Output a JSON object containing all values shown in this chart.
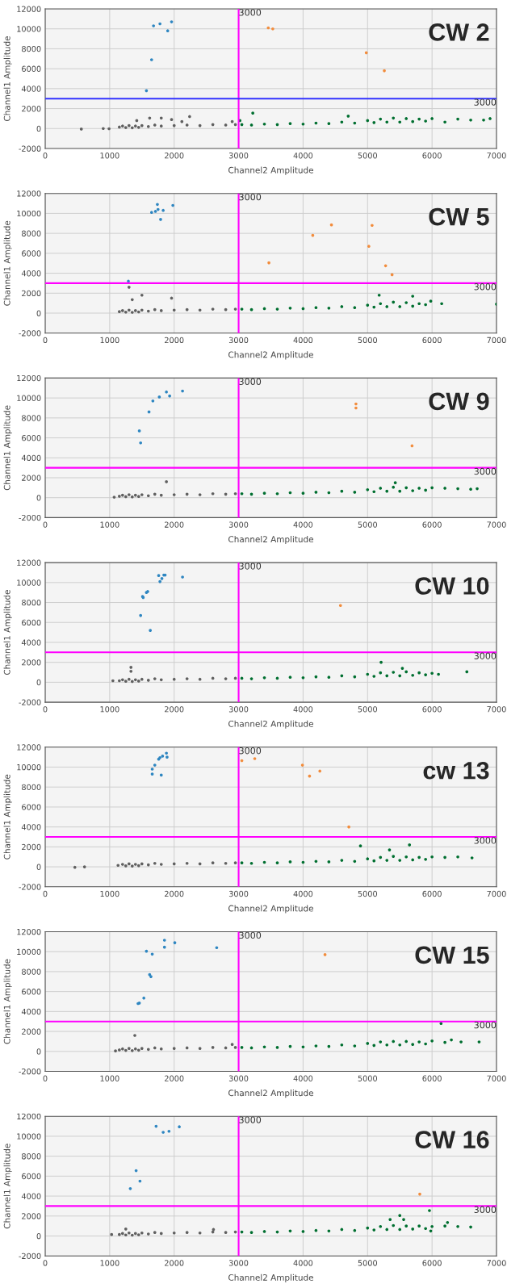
{
  "chart_data": [
    {
      "type": "scatter",
      "title": "CW 2",
      "xlabel": "Channel2 Amplitude",
      "ylabel": "Channel1 Amplitude",
      "xlim": [
        0,
        7000
      ],
      "ylim": [
        -2000,
        12000
      ],
      "xticks": [
        0,
        1000,
        2000,
        3000,
        4000,
        5000,
        6000,
        7000
      ],
      "yticks": [
        -2000,
        0,
        2000,
        4000,
        6000,
        8000,
        10000,
        12000
      ],
      "grid": true,
      "marker": "circle",
      "ref_lines": [
        {
          "axis": "x",
          "value": 3000,
          "label": "3000",
          "color": "#ff00ff"
        },
        {
          "axis": "y",
          "value": 3000,
          "label": "3000",
          "color": "#3333ff"
        }
      ],
      "series": [
        {
          "color": "#606060",
          "x": [
            560,
            900,
            990,
            1420,
            1620,
            1800,
            1960,
            2120,
            2240,
            1150,
            1200,
            1250,
            1300,
            1350,
            1400,
            1450,
            1500,
            1600,
            1700,
            1800,
            2000,
            2200,
            2400,
            2600,
            2800,
            2950,
            2900
          ],
          "values": [
            -50,
            0,
            -20,
            800,
            1050,
            1050,
            900,
            700,
            1200,
            150,
            250,
            100,
            300,
            80,
            250,
            120,
            300,
            200,
            350,
            250,
            300,
            350,
            300,
            400,
            350,
            400,
            700
          ]
        },
        {
          "color": "#006f30",
          "x": [
            3020,
            3220,
            4700,
            3050,
            3200,
            3400,
            3600,
            3800,
            4000,
            4200,
            4400,
            4600,
            4800,
            5000,
            5100,
            5200,
            5300,
            5400,
            5500,
            5600,
            5700,
            5800,
            5900,
            6000,
            6200,
            6400,
            6600,
            6800,
            6900
          ],
          "values": [
            800,
            1550,
            1250,
            400,
            350,
            450,
            400,
            500,
            450,
            550,
            500,
            650,
            550,
            800,
            600,
            950,
            650,
            1050,
            650,
            1000,
            700,
            950,
            750,
            1000,
            650,
            950,
            850,
            850,
            1000
          ]
        },
        {
          "color": "#2e86c1",
          "x": [
            1570,
            1650,
            1680,
            1780,
            1900,
            1960
          ],
          "values": [
            3800,
            6900,
            10300,
            10500,
            9800,
            10700
          ]
        },
        {
          "color": "#f28c3c",
          "x": [
            3460,
            3530,
            4980,
            5260
          ],
          "values": [
            10100,
            10000,
            7600,
            5800
          ]
        }
      ]
    },
    {
      "type": "scatter",
      "title": "CW 5",
      "xlabel": "Channel2 Amplitude",
      "ylabel": "Channel1 Amplitude",
      "xlim": [
        0,
        7000
      ],
      "ylim": [
        -2000,
        12000
      ],
      "xticks": [
        0,
        1000,
        2000,
        3000,
        4000,
        5000,
        6000,
        7000
      ],
      "yticks": [
        -2000,
        0,
        2000,
        4000,
        6000,
        8000,
        10000,
        12000
      ],
      "grid": true,
      "marker": "circle",
      "ref_lines": [
        {
          "axis": "x",
          "value": 3000,
          "label": "3000",
          "color": "#ff00ff"
        },
        {
          "axis": "y",
          "value": 3000,
          "label": "3000",
          "color": "#ff00ff"
        }
      ],
      "series": [
        {
          "color": "#606060",
          "x": [
            1300,
            1350,
            1500,
            1960,
            1150,
            1200,
            1250,
            1300,
            1350,
            1400,
            1450,
            1500,
            1600,
            1700,
            1800,
            2000,
            2200,
            2400,
            2600,
            2800,
            2950
          ],
          "values": [
            2600,
            1350,
            1800,
            1500,
            150,
            250,
            100,
            300,
            80,
            250,
            120,
            300,
            200,
            350,
            250,
            300,
            350,
            300,
            400,
            350,
            400
          ]
        },
        {
          "color": "#006f30",
          "x": [
            5180,
            5700,
            5980,
            6150,
            7000,
            3050,
            3200,
            3400,
            3600,
            3800,
            4000,
            4200,
            4400,
            4600,
            4800,
            5000,
            5100,
            5200,
            5300,
            5400,
            5500,
            5600,
            5700,
            5800,
            5900
          ],
          "values": [
            1800,
            1700,
            1200,
            950,
            900,
            400,
            350,
            450,
            400,
            500,
            450,
            550,
            500,
            650,
            550,
            800,
            600,
            950,
            650,
            1100,
            650,
            1050,
            700,
            950,
            850
          ]
        },
        {
          "color": "#2e86c1",
          "x": [
            1290,
            1650,
            1710,
            1740,
            1750,
            1790,
            1830,
            1980
          ],
          "values": [
            3200,
            10100,
            10200,
            10900,
            10400,
            9400,
            10300,
            10800
          ]
        },
        {
          "color": "#f28c3c",
          "x": [
            3470,
            4150,
            4440,
            5020,
            5070,
            5280,
            5380
          ],
          "values": [
            5050,
            7800,
            8850,
            6700,
            8800,
            4750,
            3850
          ]
        }
      ]
    },
    {
      "type": "scatter",
      "title": "CW 9",
      "xlabel": "Channel2 Amplitude",
      "ylabel": "Channel1 Amplitude",
      "xlim": [
        0,
        7000
      ],
      "ylim": [
        -2000,
        12000
      ],
      "xticks": [
        0,
        1000,
        2000,
        3000,
        4000,
        5000,
        6000,
        7000
      ],
      "yticks": [
        -2000,
        0,
        2000,
        4000,
        6000,
        8000,
        10000,
        12000
      ],
      "grid": true,
      "marker": "circle",
      "ref_lines": [
        {
          "axis": "x",
          "value": 3000,
          "label": "3000",
          "color": "#ff00ff"
        },
        {
          "axis": "y",
          "value": 3000,
          "label": "3000",
          "color": "#ff00ff"
        }
      ],
      "series": [
        {
          "color": "#606060",
          "x": [
            1070,
            1880,
            1150,
            1200,
            1250,
            1300,
            1350,
            1400,
            1450,
            1500,
            1600,
            1700,
            1800,
            2000,
            2200,
            2400,
            2600,
            2800,
            2950
          ],
          "values": [
            50,
            1600,
            150,
            250,
            100,
            300,
            80,
            250,
            120,
            300,
            200,
            350,
            250,
            300,
            350,
            300,
            400,
            350,
            400
          ]
        },
        {
          "color": "#006f30",
          "x": [
            5430,
            6700,
            3050,
            3200,
            3400,
            3600,
            3800,
            4000,
            4200,
            4400,
            4600,
            4800,
            5000,
            5100,
            5200,
            5300,
            5400,
            5500,
            5600,
            5700,
            5800,
            5900,
            6000,
            6200,
            6400,
            6600
          ],
          "values": [
            1500,
            900,
            400,
            350,
            450,
            400,
            500,
            450,
            550,
            500,
            650,
            550,
            800,
            600,
            950,
            650,
            1050,
            650,
            1000,
            700,
            950,
            750,
            1000,
            950,
            900,
            850
          ]
        },
        {
          "color": "#2e86c1",
          "x": [
            1460,
            1480,
            1610,
            1670,
            1770,
            1880,
            1930,
            2130
          ],
          "values": [
            6700,
            5500,
            8600,
            9700,
            10100,
            10600,
            10200,
            10700
          ]
        },
        {
          "color": "#f28c3c",
          "x": [
            4820,
            4820,
            5690
          ],
          "values": [
            9400,
            9000,
            5200
          ]
        }
      ]
    },
    {
      "type": "scatter",
      "title": "CW 10",
      "xlabel": "Channel2 Amplitude",
      "ylabel": "Channel1 Amplitude",
      "xlim": [
        0,
        7000
      ],
      "ylim": [
        -2000,
        12000
      ],
      "xticks": [
        0,
        1000,
        2000,
        3000,
        4000,
        5000,
        6000,
        7000
      ],
      "yticks": [
        -2000,
        0,
        2000,
        4000,
        6000,
        8000,
        10000,
        12000
      ],
      "grid": true,
      "marker": "circle",
      "ref_lines": [
        {
          "axis": "x",
          "value": 3000,
          "label": "3000",
          "color": "#ff00ff"
        },
        {
          "axis": "y",
          "value": 3000,
          "label": "3000",
          "color": "#ff00ff"
        }
      ],
      "series": [
        {
          "color": "#606060",
          "x": [
            1050,
            1330,
            1330,
            1150,
            1200,
            1250,
            1300,
            1350,
            1400,
            1450,
            1500,
            1600,
            1700,
            1800,
            2000,
            2200,
            2400,
            2600,
            2800,
            2950
          ],
          "values": [
            150,
            1500,
            1100,
            150,
            250,
            100,
            300,
            80,
            250,
            120,
            300,
            200,
            350,
            250,
            300,
            350,
            300,
            400,
            350,
            400
          ]
        },
        {
          "color": "#006f30",
          "x": [
            5210,
            5540,
            6540,
            3050,
            3200,
            3400,
            3600,
            3800,
            4000,
            4200,
            4400,
            4600,
            4800,
            5000,
            5100,
            5200,
            5300,
            5400,
            5500,
            5600,
            5700,
            5800,
            5900,
            6000,
            6100
          ],
          "values": [
            2000,
            1400,
            1050,
            400,
            350,
            450,
            400,
            500,
            450,
            550,
            500,
            650,
            550,
            800,
            600,
            950,
            650,
            1000,
            650,
            1050,
            700,
            950,
            750,
            900,
            800
          ]
        },
        {
          "color": "#2e86c1",
          "x": [
            1480,
            1510,
            1520,
            1570,
            1590,
            1630,
            1760,
            1780,
            1810,
            1840,
            1860,
            2130
          ],
          "values": [
            6700,
            8600,
            8500,
            9000,
            9100,
            5200,
            10700,
            10100,
            10400,
            10750,
            10750,
            10550
          ]
        },
        {
          "color": "#f28c3c",
          "x": [
            4580
          ],
          "values": [
            7700
          ]
        }
      ]
    },
    {
      "type": "scatter",
      "title": "cw 13",
      "xlabel": "Channel2 Amplitude",
      "ylabel": "Channel1 Amplitude",
      "xlim": [
        0,
        7000
      ],
      "ylim": [
        -2000,
        12000
      ],
      "xticks": [
        0,
        1000,
        2000,
        3000,
        4000,
        5000,
        6000,
        7000
      ],
      "yticks": [
        -2000,
        0,
        2000,
        4000,
        6000,
        8000,
        10000,
        12000
      ],
      "grid": true,
      "marker": "circle",
      "ref_lines": [
        {
          "axis": "x",
          "value": 3000,
          "label": "3000",
          "color": "#ff00ff"
        },
        {
          "axis": "y",
          "value": 3000,
          "label": "3000",
          "color": "#ff00ff"
        }
      ],
      "series": [
        {
          "color": "#606060",
          "x": [
            460,
            610,
            1130,
            1200,
            1250,
            1300,
            1350,
            1400,
            1450,
            1500,
            1600,
            1700,
            1800,
            2000,
            2200,
            2400,
            2600,
            2800,
            2950
          ],
          "values": [
            -50,
            0,
            150,
            250,
            100,
            300,
            80,
            250,
            120,
            300,
            200,
            350,
            250,
            300,
            350,
            300,
            400,
            350,
            400
          ]
        },
        {
          "color": "#006f30",
          "x": [
            4890,
            5340,
            5650,
            6620,
            3050,
            3200,
            3400,
            3600,
            3800,
            4000,
            4200,
            4400,
            4600,
            4800,
            5000,
            5100,
            5200,
            5300,
            5400,
            5500,
            5600,
            5700,
            5800,
            5900,
            6000,
            6200,
            6400
          ],
          "values": [
            2100,
            1700,
            2200,
            900,
            400,
            350,
            450,
            400,
            500,
            450,
            550,
            500,
            650,
            550,
            800,
            600,
            950,
            650,
            1050,
            650,
            1000,
            700,
            950,
            750,
            1000,
            950,
            1000
          ]
        },
        {
          "color": "#2e86c1",
          "x": [
            1660,
            1660,
            1700,
            1760,
            1780,
            1800,
            1820,
            1880,
            1890
          ],
          "values": [
            9800,
            9300,
            10200,
            10800,
            10950,
            9200,
            11100,
            11400,
            11000
          ]
        },
        {
          "color": "#f28c3c",
          "x": [
            3050,
            3250,
            3990,
            4100,
            4260,
            4710
          ],
          "values": [
            10650,
            10850,
            10200,
            9100,
            9600,
            4000
          ]
        }
      ]
    },
    {
      "type": "scatter",
      "title": "CW 15",
      "xlabel": "Channel2 Amplitude",
      "ylabel": "Channel1 Amplitude",
      "xlim": [
        0,
        7000
      ],
      "ylim": [
        -2000,
        12000
      ],
      "xticks": [
        0,
        1000,
        2000,
        3000,
        4000,
        5000,
        6000,
        7000
      ],
      "yticks": [
        -2000,
        0,
        2000,
        4000,
        6000,
        8000,
        10000,
        12000
      ],
      "grid": true,
      "marker": "circle",
      "ref_lines": [
        {
          "axis": "x",
          "value": 3000,
          "label": "3000",
          "color": "#ff00ff"
        },
        {
          "axis": "y",
          "value": 3000,
          "label": "3000",
          "color": "#ff00ff"
        }
      ],
      "series": [
        {
          "color": "#606060",
          "x": [
            1090,
            1390,
            2900,
            1150,
            1200,
            1250,
            1300,
            1350,
            1400,
            1450,
            1500,
            1600,
            1700,
            1800,
            2000,
            2200,
            2400,
            2600,
            2800,
            2950
          ],
          "values": [
            50,
            1600,
            700,
            150,
            250,
            100,
            300,
            80,
            250,
            120,
            300,
            200,
            350,
            250,
            300,
            350,
            300,
            400,
            350,
            400
          ]
        },
        {
          "color": "#006f30",
          "x": [
            6140,
            6730,
            3050,
            3200,
            3400,
            3600,
            3800,
            4000,
            4200,
            4400,
            4600,
            4800,
            5000,
            5100,
            5200,
            5300,
            5400,
            5500,
            5600,
            5700,
            5800,
            5900,
            6000,
            6200,
            6300,
            6450
          ],
          "values": [
            2800,
            950,
            400,
            350,
            450,
            400,
            500,
            450,
            550,
            500,
            650,
            550,
            800,
            600,
            950,
            650,
            1000,
            650,
            1000,
            700,
            950,
            750,
            1050,
            900,
            1150,
            950
          ]
        },
        {
          "color": "#2e86c1",
          "x": [
            1440,
            1460,
            1530,
            1570,
            1620,
            1640,
            1660,
            1850,
            1850,
            2010,
            2660
          ],
          "values": [
            4800,
            4850,
            5350,
            10050,
            7700,
            7500,
            9750,
            11150,
            10450,
            10900,
            10400
          ]
        },
        {
          "color": "#f28c3c",
          "x": [
            4340
          ],
          "values": [
            9700
          ]
        }
      ]
    },
    {
      "type": "scatter",
      "title": "CW 16",
      "xlabel": "Channel2 Amplitude",
      "ylabel": "Channel1 Amplitude",
      "xlim": [
        0,
        7000
      ],
      "ylim": [
        -2000,
        12000
      ],
      "xticks": [
        0,
        1000,
        2000,
        3000,
        4000,
        5000,
        6000,
        7000
      ],
      "yticks": [
        -2000,
        0,
        2000,
        4000,
        6000,
        8000,
        10000,
        12000
      ],
      "grid": true,
      "marker": "circle",
      "ref_lines": [
        {
          "axis": "x",
          "value": 3000,
          "label": "3000",
          "color": "#ff00ff"
        },
        {
          "axis": "y",
          "value": 3000,
          "label": "3000",
          "color": "#ff00ff"
        }
      ],
      "series": [
        {
          "color": "#606060",
          "x": [
            1030,
            1250,
            2610,
            1150,
            1200,
            1250,
            1300,
            1350,
            1400,
            1450,
            1500,
            1600,
            1700,
            1800,
            2000,
            2200,
            2400,
            2600,
            2800,
            2950
          ],
          "values": [
            150,
            700,
            650,
            150,
            250,
            100,
            300,
            80,
            250,
            120,
            300,
            200,
            350,
            250,
            300,
            350,
            300,
            400,
            350,
            400
          ]
        },
        {
          "color": "#006f30",
          "x": [
            5350,
            5500,
            5560,
            5960,
            6240,
            5980,
            3050,
            3200,
            3400,
            3600,
            3800,
            4000,
            4200,
            4400,
            4600,
            4800,
            5000,
            5100,
            5200,
            5300,
            5400,
            5500,
            5600,
            5700,
            5800,
            5900,
            6000,
            6200,
            6400,
            6600
          ],
          "values": [
            1650,
            2050,
            1650,
            2550,
            1350,
            500,
            400,
            350,
            450,
            400,
            500,
            450,
            550,
            500,
            650,
            550,
            800,
            600,
            950,
            650,
            1050,
            650,
            1000,
            700,
            1000,
            750,
            950,
            1000,
            950,
            900
          ]
        },
        {
          "color": "#2e86c1",
          "x": [
            1320,
            1410,
            1470,
            1720,
            1830,
            1920,
            2080
          ],
          "values": [
            4750,
            6550,
            5500,
            11000,
            10400,
            10500,
            10950
          ]
        },
        {
          "color": "#f28c3c",
          "x": [
            5810
          ],
          "values": [
            4200
          ]
        }
      ]
    }
  ]
}
